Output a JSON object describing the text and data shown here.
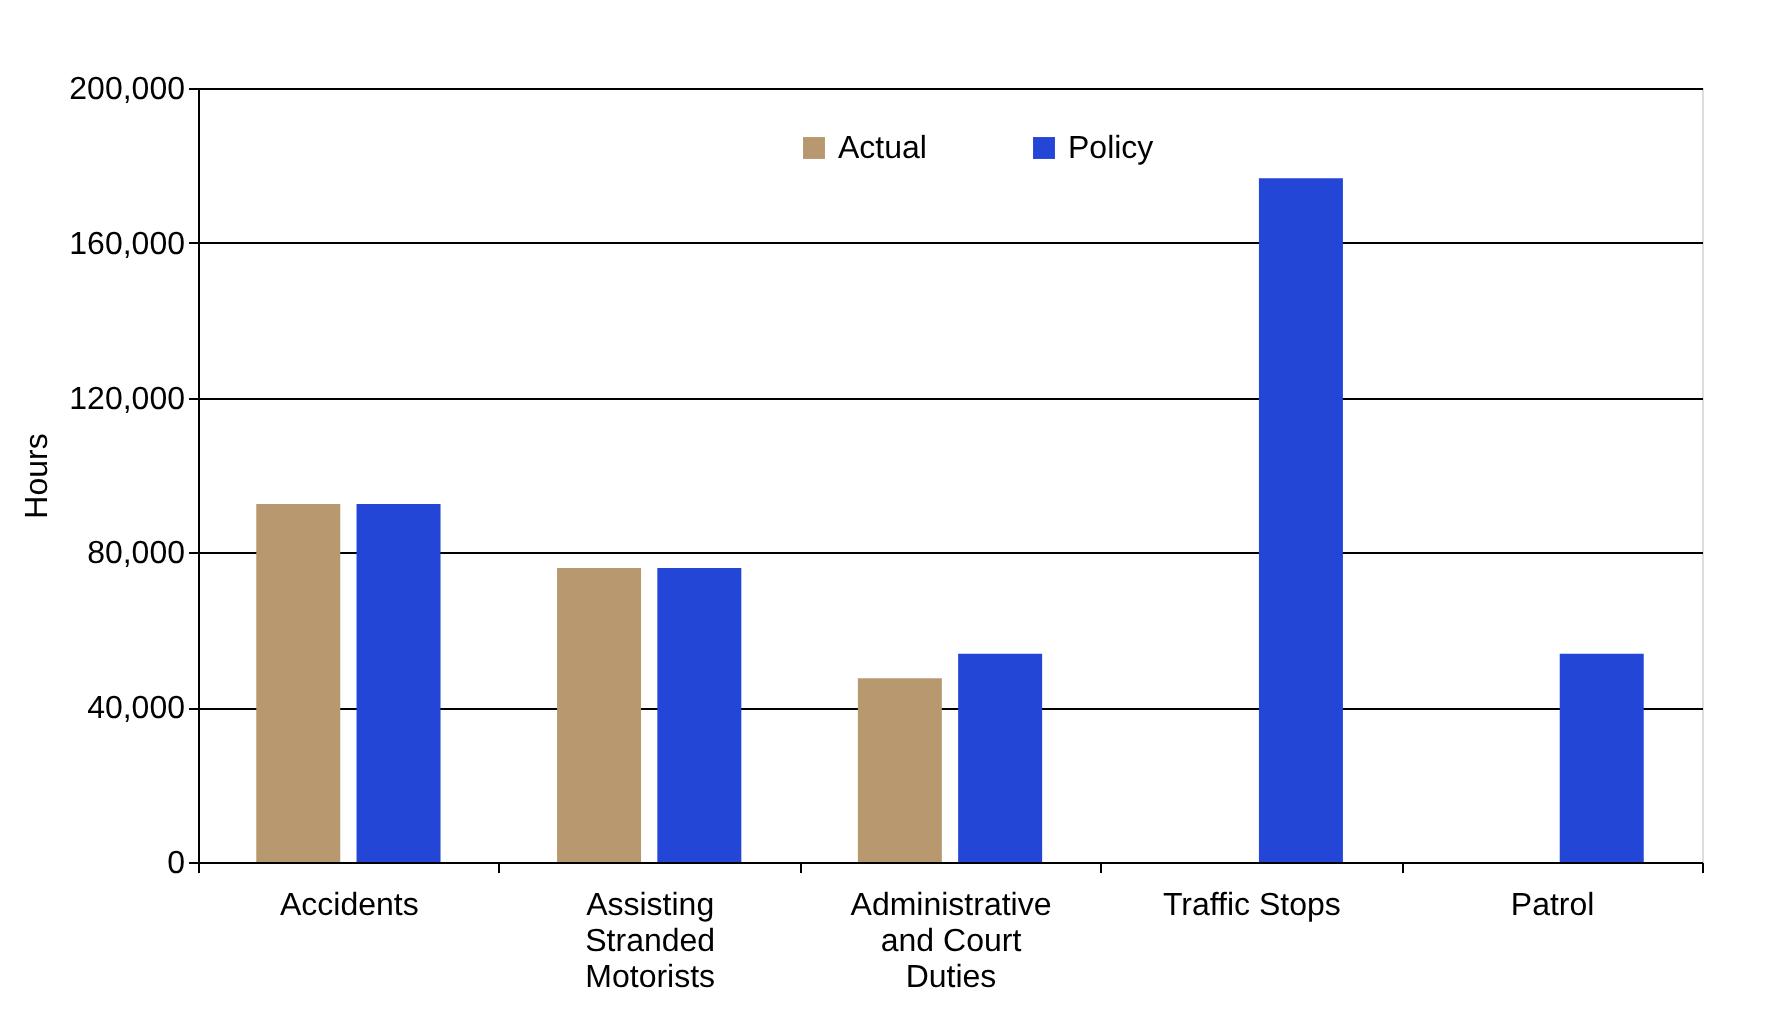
{
  "chart_data": {
    "type": "bar",
    "ylabel": "Hours",
    "categories": [
      "Accidents",
      "Assisting Stranded Motorists",
      "Administrative and Court Duties",
      "Traffic Stops",
      "Patrol"
    ],
    "series": [
      {
        "name": "Actual",
        "color": "#b8996f",
        "values": [
          92500,
          76000,
          47500,
          null,
          null
        ]
      },
      {
        "name": "Policy",
        "color": "#2446d6",
        "values": [
          92500,
          76000,
          53800,
          176700,
          53800
        ]
      }
    ],
    "ylim": [
      0,
      200000
    ],
    "yticks": [
      {
        "value": 0,
        "label": "0"
      },
      {
        "value": 40000,
        "label": "40,000"
      },
      {
        "value": 80000,
        "label": "80,000"
      },
      {
        "value": 120000,
        "label": "120,000"
      },
      {
        "value": 160000,
        "label": "160,000"
      },
      {
        "value": 200000,
        "label": "200,000"
      }
    ],
    "grid": "y",
    "legend": "top"
  }
}
